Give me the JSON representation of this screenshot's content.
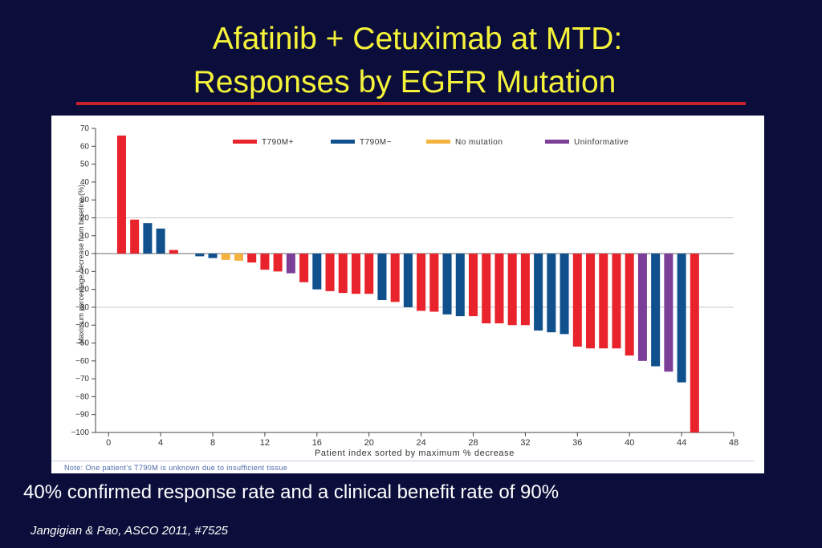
{
  "slide": {
    "title_line1": "Afatinib + Cetuximab at MTD:",
    "title_line2": "Responses by EGFR Mutation",
    "summary": "40% confirmed response rate and a clinical benefit rate of 90%",
    "citation": "Jangigian & Pao, ASCO 2011, #7525",
    "note": "Note: One patient's T790M is unknown due to insufficient tissue"
  },
  "chart_data": {
    "type": "bar",
    "title": "",
    "xlabel": "Patient index sorted by maximum % decrease",
    "ylabel": "Maximum percentage decrease from baseline (%)",
    "xlim": [
      -1,
      48
    ],
    "ylim": [
      -100,
      70
    ],
    "x_ticks": [
      0,
      4,
      8,
      12,
      16,
      20,
      24,
      28,
      32,
      36,
      40,
      44,
      48
    ],
    "y_ticks": [
      70,
      60,
      50,
      40,
      30,
      20,
      10,
      0,
      -10,
      -20,
      -30,
      -40,
      -50,
      -60,
      -70,
      -80,
      -90,
      -100
    ],
    "gridlines": [
      20,
      0,
      -30
    ],
    "legend_position": "top",
    "series": [
      {
        "name": "T790M+",
        "color": "#e8232c"
      },
      {
        "name": "T790M−",
        "color": "#10508c"
      },
      {
        "name": "No mutation",
        "color": "#f4b240"
      },
      {
        "name": "Uninformative",
        "color": "#7b3f98"
      }
    ],
    "bars": [
      {
        "x": 1,
        "value": 66,
        "series": "T790M+"
      },
      {
        "x": 2,
        "value": 19,
        "series": "T790M+"
      },
      {
        "x": 3,
        "value": 17,
        "series": "T790M−"
      },
      {
        "x": 4,
        "value": 14,
        "series": "T790M−"
      },
      {
        "x": 5,
        "value": 2,
        "series": "T790M+"
      },
      {
        "x": 7,
        "value": -1.5,
        "series": "T790M−"
      },
      {
        "x": 8,
        "value": -2.5,
        "series": "T790M−"
      },
      {
        "x": 9,
        "value": -3.5,
        "series": "No mutation"
      },
      {
        "x": 10,
        "value": -4,
        "series": "No mutation"
      },
      {
        "x": 11,
        "value": -5,
        "series": "T790M+"
      },
      {
        "x": 12,
        "value": -9,
        "series": "T790M+"
      },
      {
        "x": 13,
        "value": -10,
        "series": "T790M+"
      },
      {
        "x": 14,
        "value": -11,
        "series": "Uninformative"
      },
      {
        "x": 15,
        "value": -16,
        "series": "T790M+"
      },
      {
        "x": 16,
        "value": -20,
        "series": "T790M−"
      },
      {
        "x": 17,
        "value": -21,
        "series": "T790M+"
      },
      {
        "x": 18,
        "value": -22,
        "series": "T790M+"
      },
      {
        "x": 19,
        "value": -22.5,
        "series": "T790M+"
      },
      {
        "x": 20,
        "value": -22.5,
        "series": "T790M+"
      },
      {
        "x": 21,
        "value": -26,
        "series": "T790M−"
      },
      {
        "x": 22,
        "value": -27,
        "series": "T790M+"
      },
      {
        "x": 23,
        "value": -30,
        "series": "T790M−"
      },
      {
        "x": 24,
        "value": -32,
        "series": "T790M+"
      },
      {
        "x": 25,
        "value": -32.5,
        "series": "T790M+"
      },
      {
        "x": 26,
        "value": -34,
        "series": "T790M−"
      },
      {
        "x": 27,
        "value": -35,
        "series": "T790M−"
      },
      {
        "x": 28,
        "value": -35,
        "series": "T790M+"
      },
      {
        "x": 29,
        "value": -39,
        "series": "T790M+"
      },
      {
        "x": 30,
        "value": -39,
        "series": "T790M+"
      },
      {
        "x": 31,
        "value": -40,
        "series": "T790M+"
      },
      {
        "x": 32,
        "value": -40,
        "series": "T790M+"
      },
      {
        "x": 33,
        "value": -43,
        "series": "T790M−"
      },
      {
        "x": 34,
        "value": -44,
        "series": "T790M−"
      },
      {
        "x": 35,
        "value": -45,
        "series": "T790M−"
      },
      {
        "x": 36,
        "value": -52,
        "series": "T790M+"
      },
      {
        "x": 37,
        "value": -53,
        "series": "T790M+"
      },
      {
        "x": 38,
        "value": -53,
        "series": "T790M+"
      },
      {
        "x": 39,
        "value": -53,
        "series": "T790M+"
      },
      {
        "x": 40,
        "value": -57,
        "series": "T790M+"
      },
      {
        "x": 41,
        "value": -60,
        "series": "Uninformative"
      },
      {
        "x": 42,
        "value": -63,
        "series": "T790M−"
      },
      {
        "x": 43,
        "value": -66,
        "series": "Uninformative"
      },
      {
        "x": 44,
        "value": -72,
        "series": "T790M−"
      },
      {
        "x": 45,
        "value": -100,
        "series": "T790M+"
      }
    ]
  }
}
